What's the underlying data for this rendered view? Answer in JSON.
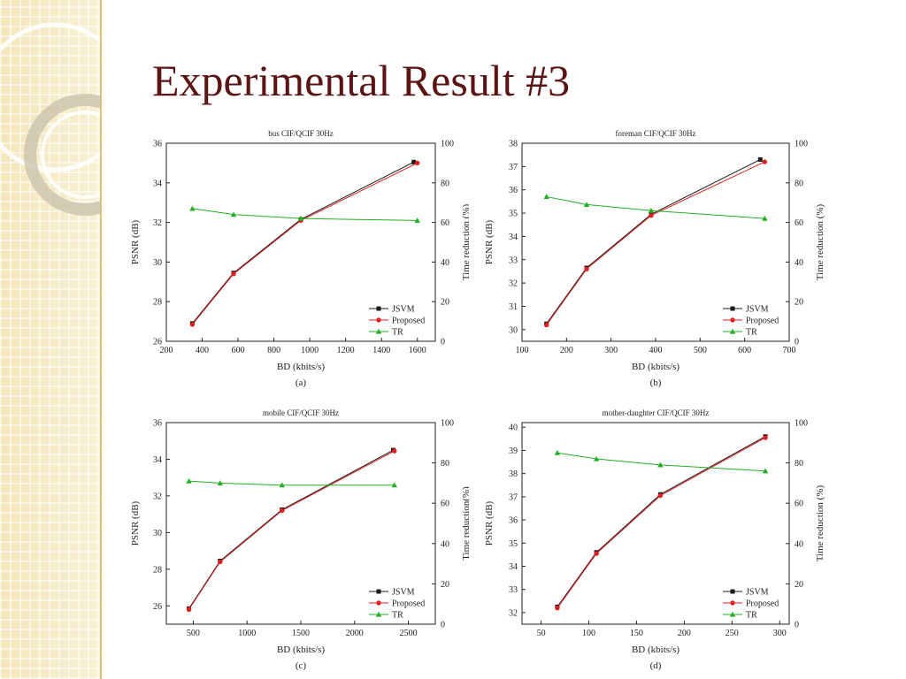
{
  "slide": {
    "title": "Experimental Result #3"
  },
  "colors": {
    "jsvm": "#1a1a1a",
    "proposed": "#e02020",
    "tr": "#22b022",
    "title": "#5a1414"
  },
  "chart_data": [
    {
      "type": "line",
      "title": "bus CIF/QCIF 30Hz",
      "xlabel": "BD (kbits/s)",
      "ylabel": "PSNR (dB)",
      "y2label": "Time reduction (%)",
      "caption": "(a)",
      "xlim": [
        200,
        1700
      ],
      "xticks": [
        200,
        400,
        600,
        800,
        1000,
        1200,
        1400,
        1600
      ],
      "ylim": [
        26,
        36
      ],
      "yticks": [
        26,
        28,
        30,
        32,
        34,
        36
      ],
      "y2lim": [
        0,
        100
      ],
      "y2ticks": [
        0,
        20,
        40,
        60,
        80,
        100
      ],
      "legend_position": "bottom-right",
      "series": [
        {
          "name": "JSVM",
          "axis": "left",
          "x": [
            345,
            575,
            950,
            1580
          ],
          "y": [
            26.9,
            29.45,
            32.15,
            35.05
          ]
        },
        {
          "name": "Proposed",
          "axis": "left",
          "x": [
            345,
            575,
            950,
            1600
          ],
          "y": [
            26.85,
            29.4,
            32.1,
            35.0
          ]
        },
        {
          "name": "TR",
          "axis": "right",
          "x": [
            345,
            575,
            950,
            1600
          ],
          "y": [
            67,
            64,
            62,
            61
          ]
        }
      ]
    },
    {
      "type": "line",
      "title": "foreman CIF/QCIF 30Hz",
      "xlabel": "BD (kbits/s)",
      "ylabel": "PSNR (dB)",
      "y2label": "Time reduction (%)",
      "caption": "(b)",
      "xlim": [
        100,
        700
      ],
      "xticks": [
        100,
        200,
        300,
        400,
        500,
        600,
        700
      ],
      "ylim": [
        29.5,
        38
      ],
      "yticks": [
        30,
        31,
        32,
        33,
        34,
        35,
        36,
        37,
        38
      ],
      "y2lim": [
        0,
        100
      ],
      "y2ticks": [
        0,
        20,
        40,
        60,
        80,
        100
      ],
      "legend_position": "bottom-right",
      "series": [
        {
          "name": "JSVM",
          "axis": "left",
          "x": [
            155,
            245,
            390,
            635
          ],
          "y": [
            30.25,
            32.65,
            34.95,
            37.3
          ]
        },
        {
          "name": "Proposed",
          "axis": "left",
          "x": [
            155,
            245,
            390,
            645
          ],
          "y": [
            30.2,
            32.6,
            34.9,
            37.2
          ]
        },
        {
          "name": "TR",
          "axis": "right",
          "x": [
            155,
            245,
            390,
            645
          ],
          "y": [
            73,
            69,
            66,
            62
          ]
        }
      ]
    },
    {
      "type": "line",
      "title": "mobile CIF/QCIF 30Hz",
      "xlabel": "BD (kbits/s)",
      "ylabel": "PSNR (dB)",
      "y2label": "Time reduction(%)",
      "caption": "(c)",
      "xlim": [
        250,
        2750
      ],
      "xticks": [
        500,
        1000,
        1500,
        2000,
        2500
      ],
      "ylim": [
        25,
        36
      ],
      "yticks": [
        26,
        28,
        30,
        32,
        34,
        36
      ],
      "y2lim": [
        0,
        100
      ],
      "y2ticks": [
        0,
        20,
        40,
        60,
        80,
        100
      ],
      "legend_position": "bottom-right",
      "series": [
        {
          "name": "JSVM",
          "axis": "left",
          "x": [
            460,
            750,
            1325,
            2360
          ],
          "y": [
            25.85,
            28.45,
            31.25,
            34.5
          ]
        },
        {
          "name": "Proposed",
          "axis": "left",
          "x": [
            460,
            750,
            1325,
            2370
          ],
          "y": [
            25.8,
            28.4,
            31.2,
            34.45
          ]
        },
        {
          "name": "TR",
          "axis": "right",
          "x": [
            460,
            750,
            1325,
            2370
          ],
          "y": [
            71,
            70,
            69,
            69
          ]
        }
      ]
    },
    {
      "type": "line",
      "title": "mother-daughter CIF/QCIF 30Hz",
      "xlabel": "BD (kbits/s)",
      "ylabel": "PSNR (dB)",
      "y2label": "Time reduction (%)",
      "caption": "(d)",
      "xlim": [
        30,
        310
      ],
      "xticks": [
        50,
        100,
        150,
        200,
        250,
        300
      ],
      "ylim": [
        31.5,
        40.2
      ],
      "yticks": [
        32,
        33,
        34,
        35,
        36,
        37,
        38,
        39,
        40
      ],
      "y2lim": [
        0,
        100
      ],
      "y2ticks": [
        0,
        20,
        40,
        60,
        80,
        100
      ],
      "legend_position": "bottom-right",
      "series": [
        {
          "name": "JSVM",
          "axis": "left",
          "x": [
            67,
            108,
            175,
            285
          ],
          "y": [
            32.25,
            34.6,
            37.1,
            39.6
          ]
        },
        {
          "name": "Proposed",
          "axis": "left",
          "x": [
            67,
            108,
            175,
            285
          ],
          "y": [
            32.2,
            34.55,
            37.05,
            39.55
          ]
        },
        {
          "name": "TR",
          "axis": "right",
          "x": [
            67,
            108,
            175,
            285
          ],
          "y": [
            85,
            82,
            79,
            76
          ]
        }
      ]
    }
  ]
}
